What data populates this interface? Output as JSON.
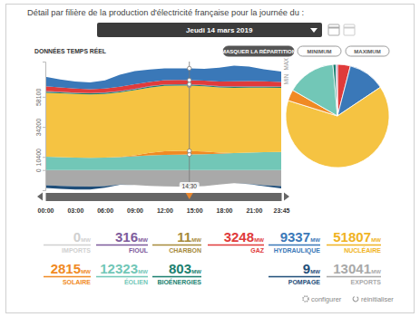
{
  "header": {
    "title": "Détail par filière de la production d'électricité française pour la journée du :",
    "date": "Jeudi 14 mars 2019"
  },
  "toolbar": {
    "label": "DONNÉES TEMPS RÉEL",
    "buttons": [
      "MASQUER LA RÉPARTITION",
      "MINIMUM",
      "MAXIMUM"
    ]
  },
  "chart_data": [
    {
      "type": "area",
      "stacked": true,
      "grid": false,
      "x": [
        0,
        1.5,
        3,
        4.5,
        6,
        7.5,
        9,
        10.5,
        12,
        13.5,
        14.5,
        16,
        17.5,
        19,
        20.5,
        22,
        23.75
      ],
      "xlim": [
        0,
        23.75
      ],
      "xticks": [
        {
          "value": 0,
          "label": "00:00"
        },
        {
          "value": 3,
          "label": "03:00"
        },
        {
          "value": 6,
          "label": "06:00"
        },
        {
          "value": 9,
          "label": "09:00"
        },
        {
          "value": 12,
          "label": "12:00"
        },
        {
          "value": 15,
          "label": "15:00"
        },
        {
          "value": 18,
          "label": "18:00"
        },
        {
          "value": 21,
          "label": "21:00"
        },
        {
          "value": 23.75,
          "label": "23:45"
        }
      ],
      "ylim": [
        -16000,
        86000
      ],
      "yticks": [
        0,
        10400,
        34200,
        58100
      ],
      "annotations": [
        {
          "x": 14.5,
          "label": "14:30"
        },
        {
          "y": 84000,
          "label": "MAX"
        },
        {
          "y": 72000,
          "label": "MIN"
        }
      ],
      "series": [
        {
          "color": "#a9a9a9",
          "values": [
            -12000,
            -12500,
            -13000,
            -13200,
            -12800,
            -11500,
            -11800,
            -12600,
            -13000,
            -13100,
            -13041,
            -12800,
            -11500,
            -10500,
            -11000,
            -12000,
            -12800
          ]
        },
        {
          "color": "#1f4e79",
          "values": [
            -2200,
            -2500,
            -2500,
            -2300,
            -1200,
            -100,
            -9,
            -9,
            -9,
            -9,
            -9,
            -9,
            -9,
            -9,
            -100,
            -800,
            -1800
          ]
        },
        {
          "color": "#72c7b7",
          "values": [
            10500,
            10200,
            9900,
            9700,
            9800,
            10300,
            11000,
            11600,
            12000,
            12200,
            12323,
            12600,
            13000,
            13400,
            13800,
            14100,
            14300
          ]
        },
        {
          "color": "#f08a24",
          "values": [
            0,
            0,
            0,
            0,
            0,
            20,
            700,
            2000,
            2900,
            3000,
            2815,
            2100,
            900,
            100,
            0,
            0,
            0
          ]
        },
        {
          "color": "#f5c342",
          "values": [
            50800,
            50600,
            50400,
            50300,
            50600,
            51200,
            51600,
            51800,
            51900,
            51800,
            51807,
            51700,
            51600,
            51700,
            51500,
            51200,
            50900
          ]
        },
        {
          "color": "#1a7f6f",
          "values": [
            780,
            780,
            770,
            770,
            780,
            790,
            800,
            800,
            805,
            805,
            803,
            800,
            800,
            800,
            795,
            790,
            785
          ]
        },
        {
          "color": "#a68a3b",
          "values": [
            300,
            200,
            100,
            11,
            11,
            11,
            11,
            11,
            11,
            11,
            11,
            11,
            11,
            11,
            11,
            11,
            11
          ]
        },
        {
          "color": "#7e5b9c",
          "values": [
            310,
            300,
            300,
            300,
            310,
            320,
            320,
            316,
            316,
            316,
            316,
            316,
            320,
            330,
            320,
            316,
            310
          ]
        },
        {
          "color": "#e03b3b",
          "values": [
            3800,
            3500,
            3200,
            3000,
            3100,
            3500,
            3600,
            3400,
            3300,
            3250,
            3248,
            3300,
            3600,
            4000,
            4100,
            3900,
            3600
          ]
        },
        {
          "color": "#3a78b8",
          "values": [
            7500,
            6200,
            5600,
            5400,
            6500,
            9500,
            10500,
            9800,
            9400,
            9200,
            9337,
            9500,
            11000,
            12500,
            11500,
            9500,
            8200
          ]
        }
      ]
    },
    {
      "type": "pie",
      "values": [
        3248,
        9337,
        51807,
        2815,
        12323,
        803,
        11,
        316
      ],
      "colors": [
        "#e03b3b",
        "#3a78b8",
        "#f5c342",
        "#f08a24",
        "#72c7b7",
        "#1a7f6f",
        "#a68a3b",
        "#7e5b9c"
      ]
    }
  ],
  "tiles": [
    {
      "value": 0,
      "unit": "MW",
      "label": "IMPORTS",
      "color": "#d0d0d0"
    },
    {
      "value": 316,
      "unit": "MW",
      "label": "FIOUL",
      "color": "#7e5b9c"
    },
    {
      "value": 11,
      "unit": "MW",
      "label": "CHARBON",
      "color": "#a68a3b"
    },
    {
      "value": 3248,
      "unit": "MW",
      "label": "GAZ",
      "color": "#e03b3b"
    },
    {
      "value": 9337,
      "unit": "MW",
      "label": "HYDRAULIQUE",
      "color": "#3a78b8"
    },
    {
      "value": 51807,
      "unit": "MW",
      "label": "NUCLÉAIRE",
      "color": "#f0b323"
    },
    {
      "value": 2815,
      "unit": "MW",
      "label": "SOLAIRE",
      "color": "#f08a24"
    },
    {
      "value": 12323,
      "unit": "MW",
      "label": "ÉOLIEN",
      "color": "#72c7b7"
    },
    {
      "value": 803,
      "unit": "MW",
      "label": "BIOÉNERGIES",
      "color": "#1a7f6f"
    },
    {
      "value": 9,
      "unit": "MW",
      "label": "POMPAGE",
      "color": "#1f4e79"
    },
    {
      "value": 13041,
      "unit": "MW",
      "label": "EXPORTS",
      "color": "#a9a9a9"
    }
  ],
  "footer": {
    "links": [
      "configurer",
      "réinitialiser"
    ]
  }
}
